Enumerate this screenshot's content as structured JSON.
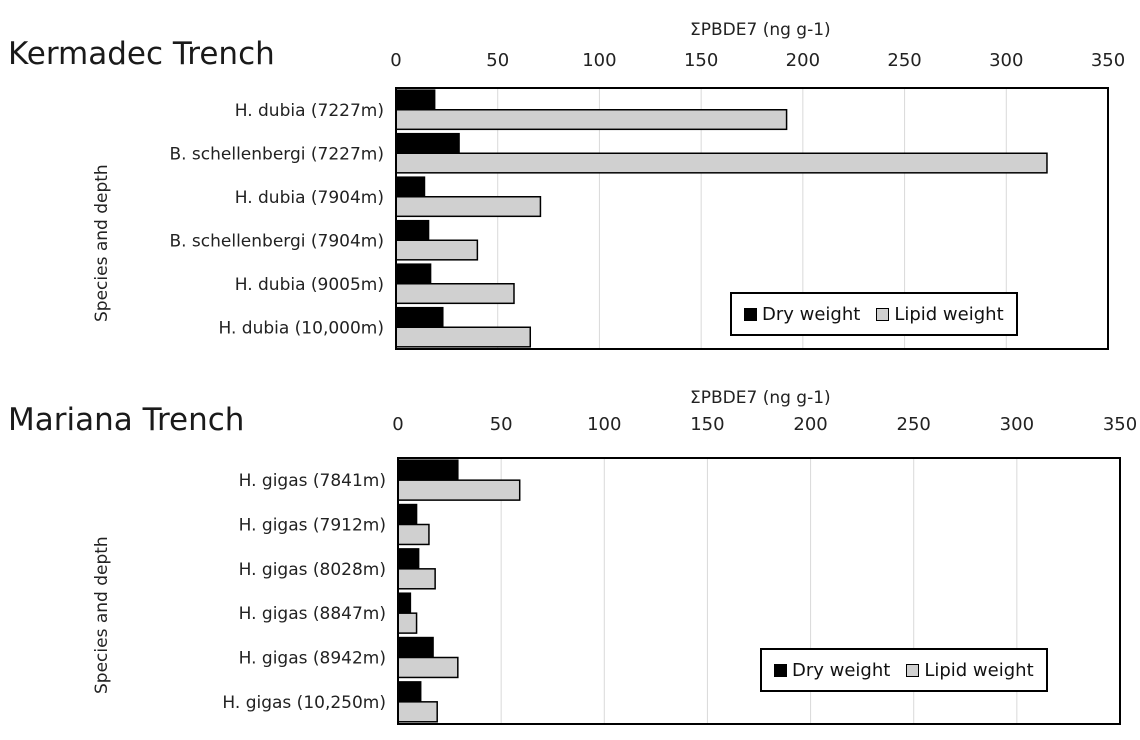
{
  "colors": {
    "dry": "#000000",
    "lipid": "#d0d0d0",
    "grid": "#d9d9d9"
  },
  "chart_data": [
    {
      "type": "bar",
      "orientation": "horizontal",
      "title": "Kermadec Trench",
      "xlabel": "ΣPBDE7 (ng g-1)",
      "ylabel": "Species and depth",
      "xlim": [
        0,
        350
      ],
      "x_ticks": [
        0,
        50,
        100,
        150,
        200,
        250,
        300,
        350
      ],
      "x_axis_position": "top",
      "grid": true,
      "legend_position": "bottom-right",
      "categories": [
        "H. dubia (7227m)",
        "B. schellenbergi (7227m)",
        "H. dubia (7904m)",
        "B. schellenbergi (7904m)",
        "H. dubia (9005m)",
        "H. dubia (10,000m)"
      ],
      "series": [
        {
          "name": "Dry weight",
          "values": [
            19,
            31,
            14,
            16,
            17,
            23
          ]
        },
        {
          "name": "Lipid weight",
          "values": [
            192,
            320,
            71,
            40,
            58,
            66
          ]
        }
      ]
    },
    {
      "type": "bar",
      "orientation": "horizontal",
      "title": "Mariana Trench",
      "xlabel": "ΣPBDE7 (ng g-1)",
      "ylabel": "Species and depth",
      "xlim": [
        0,
        350
      ],
      "x_ticks": [
        0,
        50,
        100,
        150,
        200,
        250,
        300,
        350
      ],
      "x_axis_position": "top",
      "grid": true,
      "legend_position": "bottom-right",
      "categories": [
        "H. gigas (7841m)",
        "H. gigas (7912m)",
        "H. gigas (8028m)",
        "H. gigas (8847m)",
        "H. gigas (8942m)",
        "H. gigas (10,250m)"
      ],
      "series": [
        {
          "name": "Dry weight",
          "values": [
            29,
            9,
            10,
            6,
            17,
            11
          ]
        },
        {
          "name": "Lipid weight",
          "values": [
            59,
            15,
            18,
            9,
            29,
            19
          ]
        }
      ]
    }
  ]
}
